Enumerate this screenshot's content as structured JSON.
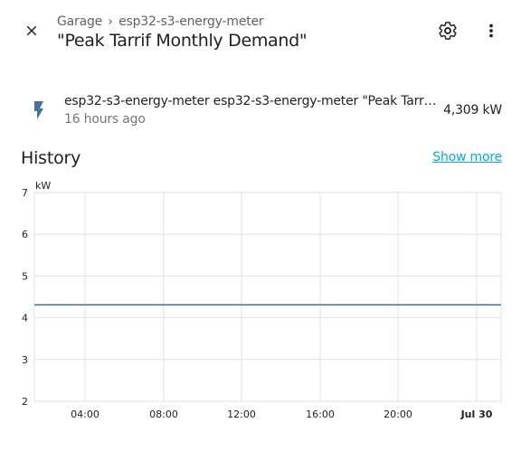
{
  "header": {
    "breadcrumb": [
      "Garage",
      "esp32-s3-energy-meter"
    ],
    "title": "\"Peak Tarrif Monthly Demand\"",
    "icons": {
      "close": "close-icon",
      "settings": "gear-icon",
      "more": "dots-vertical-icon",
      "separator": "chevron-right-icon"
    }
  },
  "entity": {
    "icon": "flash-icon",
    "name": "esp32-s3-energy-meter esp32-s3-energy-meter \"Peak Tarrif Monthly Demand\"",
    "last_changed": "16 hours ago",
    "value": "4,309 kW"
  },
  "history": {
    "title": "History",
    "show_more": "Show more"
  },
  "colors": {
    "accent": "#03a9f4",
    "series": "#44739e",
    "icon": "#44739e"
  },
  "chart_data": {
    "type": "line",
    "unit_label": "kW",
    "y_ticks": [
      "7",
      "6",
      "5",
      "4",
      "3",
      "2"
    ],
    "ylim": [
      2,
      7
    ],
    "x_ticks": [
      "04:00",
      "08:00",
      "12:00",
      "16:00",
      "20:00",
      "Jul 30"
    ],
    "series": [
      {
        "values": [
          4.31,
          4.31
        ]
      }
    ],
    "grid": true
  }
}
